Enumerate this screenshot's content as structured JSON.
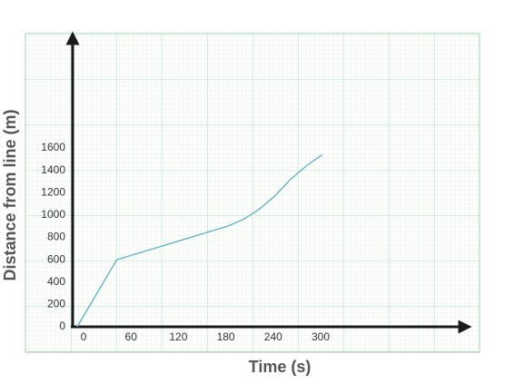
{
  "chart_data": {
    "type": "line",
    "x_label": "Time (s)",
    "y_label": "Distance from line (m)",
    "x": [
      0,
      50,
      190,
      210,
      230,
      250,
      270,
      290,
      310
    ],
    "series": [
      {
        "color": "#5ab0c6",
        "values": [
          0,
          600,
          900,
          960,
          1050,
          1170,
          1320,
          1440,
          1540
        ]
      }
    ],
    "xlim": [
      0,
      500
    ],
    "ylim": [
      0,
      2600
    ],
    "xticks": [
      0,
      60,
      120,
      180,
      240,
      300
    ],
    "yticks": [
      0,
      200,
      400,
      600,
      800,
      1000,
      1200,
      1400,
      1600
    ]
  }
}
